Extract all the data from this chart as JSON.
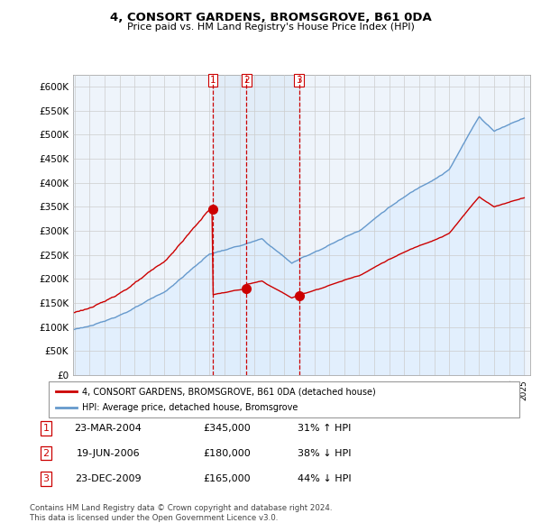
{
  "title": "4, CONSORT GARDENS, BROMSGROVE, B61 0DA",
  "subtitle": "Price paid vs. HM Land Registry's House Price Index (HPI)",
  "legend_line1": "4, CONSORT GARDENS, BROMSGROVE, B61 0DA (detached house)",
  "legend_line2": "HPI: Average price, detached house, Bromsgrove",
  "table": [
    {
      "num": "1",
      "date": "23-MAR-2004",
      "price": "£345,000",
      "hpi": "31% ↑ HPI"
    },
    {
      "num": "2",
      "date": "19-JUN-2006",
      "price": "£180,000",
      "hpi": "38% ↓ HPI"
    },
    {
      "num": "3",
      "date": "23-DEC-2009",
      "price": "£165,000",
      "hpi": "44% ↓ HPI"
    }
  ],
  "footnote1": "Contains HM Land Registry data © Crown copyright and database right 2024.",
  "footnote2": "This data is licensed under the Open Government Licence v3.0.",
  "sale_color": "#cc0000",
  "hpi_color": "#6699cc",
  "hpi_fill_color": "#ddeeff",
  "vline_color": "#cc0000",
  "grid_color": "#cccccc",
  "bg_color": "#eef4fb",
  "ylim": [
    0,
    625000
  ],
  "yticks": [
    0,
    50000,
    100000,
    150000,
    200000,
    250000,
    300000,
    350000,
    400000,
    450000,
    500000,
    550000,
    600000
  ],
  "sale_dates": [
    2004.22,
    2006.47,
    2009.98
  ],
  "sale_prices": [
    345000,
    180000,
    165000
  ],
  "vline_dates": [
    2004.22,
    2006.47,
    2009.98
  ]
}
